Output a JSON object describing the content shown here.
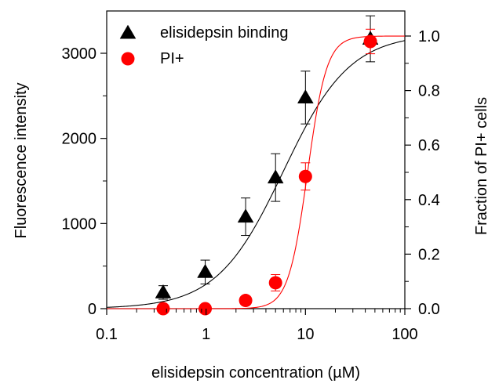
{
  "chart_data": {
    "type": "scatter",
    "xlabel": "elisidepsin concentration (µM)",
    "ylabel_left": "Fluorescence intensity",
    "ylabel_right": "Fraction of PI+ cells",
    "x_scale": "log",
    "xlim": [
      0.1,
      100
    ],
    "ylim_left": [
      0,
      3400
    ],
    "ylim_right": [
      0,
      1.1
    ],
    "x_ticks": [
      0.1,
      1,
      10,
      100
    ],
    "x_tick_labels": [
      "0.1",
      "1",
      "10",
      "100"
    ],
    "y_left_ticks": [
      0,
      1000,
      2000,
      3000
    ],
    "y_left_tick_labels": [
      "0",
      "1000",
      "2000",
      "3000"
    ],
    "y_right_ticks": [
      0.0,
      0.2,
      0.4,
      0.6,
      0.8,
      1.0
    ],
    "y_right_tick_labels": [
      "0.0",
      "0.2",
      "0.4",
      "0.6",
      "0.8",
      "1.0"
    ],
    "legend_position": "top-left",
    "series": [
      {
        "name": "elisidepsin binding",
        "axis": "left",
        "marker": "triangle",
        "color": "#000000",
        "x": [
          0.37,
          0.98,
          2.5,
          5.0,
          10.0,
          45.0
        ],
        "y": [
          190,
          430,
          1080,
          1540,
          2480,
          3170
        ],
        "err": [
          80,
          140,
          220,
          280,
          310,
          270
        ],
        "fit": {
          "bottom": 0,
          "top": 3230,
          "ec50": 6.0,
          "hill": 1.3
        }
      },
      {
        "name": "PI+",
        "axis": "right",
        "marker": "circle",
        "color": "#ff0000",
        "x": [
          0.37,
          0.98,
          2.5,
          5.0,
          10.0,
          45.0
        ],
        "y": [
          0.0,
          0.0,
          0.03,
          0.095,
          0.485,
          0.98
        ],
        "err": [
          0,
          0,
          0.005,
          0.03,
          0.05,
          0.045
        ],
        "fit": {
          "bottom": 0,
          "top": 1.0,
          "ec50": 10.5,
          "hill": 4.5
        }
      }
    ]
  }
}
